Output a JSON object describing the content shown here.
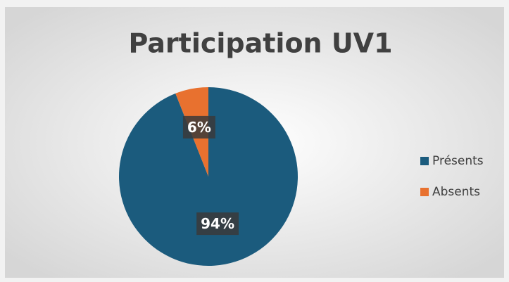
{
  "chart_data": {
    "type": "pie",
    "title": "Participation UV1",
    "categories": [
      "Présents",
      "Absents"
    ],
    "values": [
      94,
      6
    ],
    "value_labels": [
      "94%",
      "6%"
    ],
    "colors": [
      "#1b5b7d",
      "#e8712f"
    ],
    "legend": "right"
  }
}
